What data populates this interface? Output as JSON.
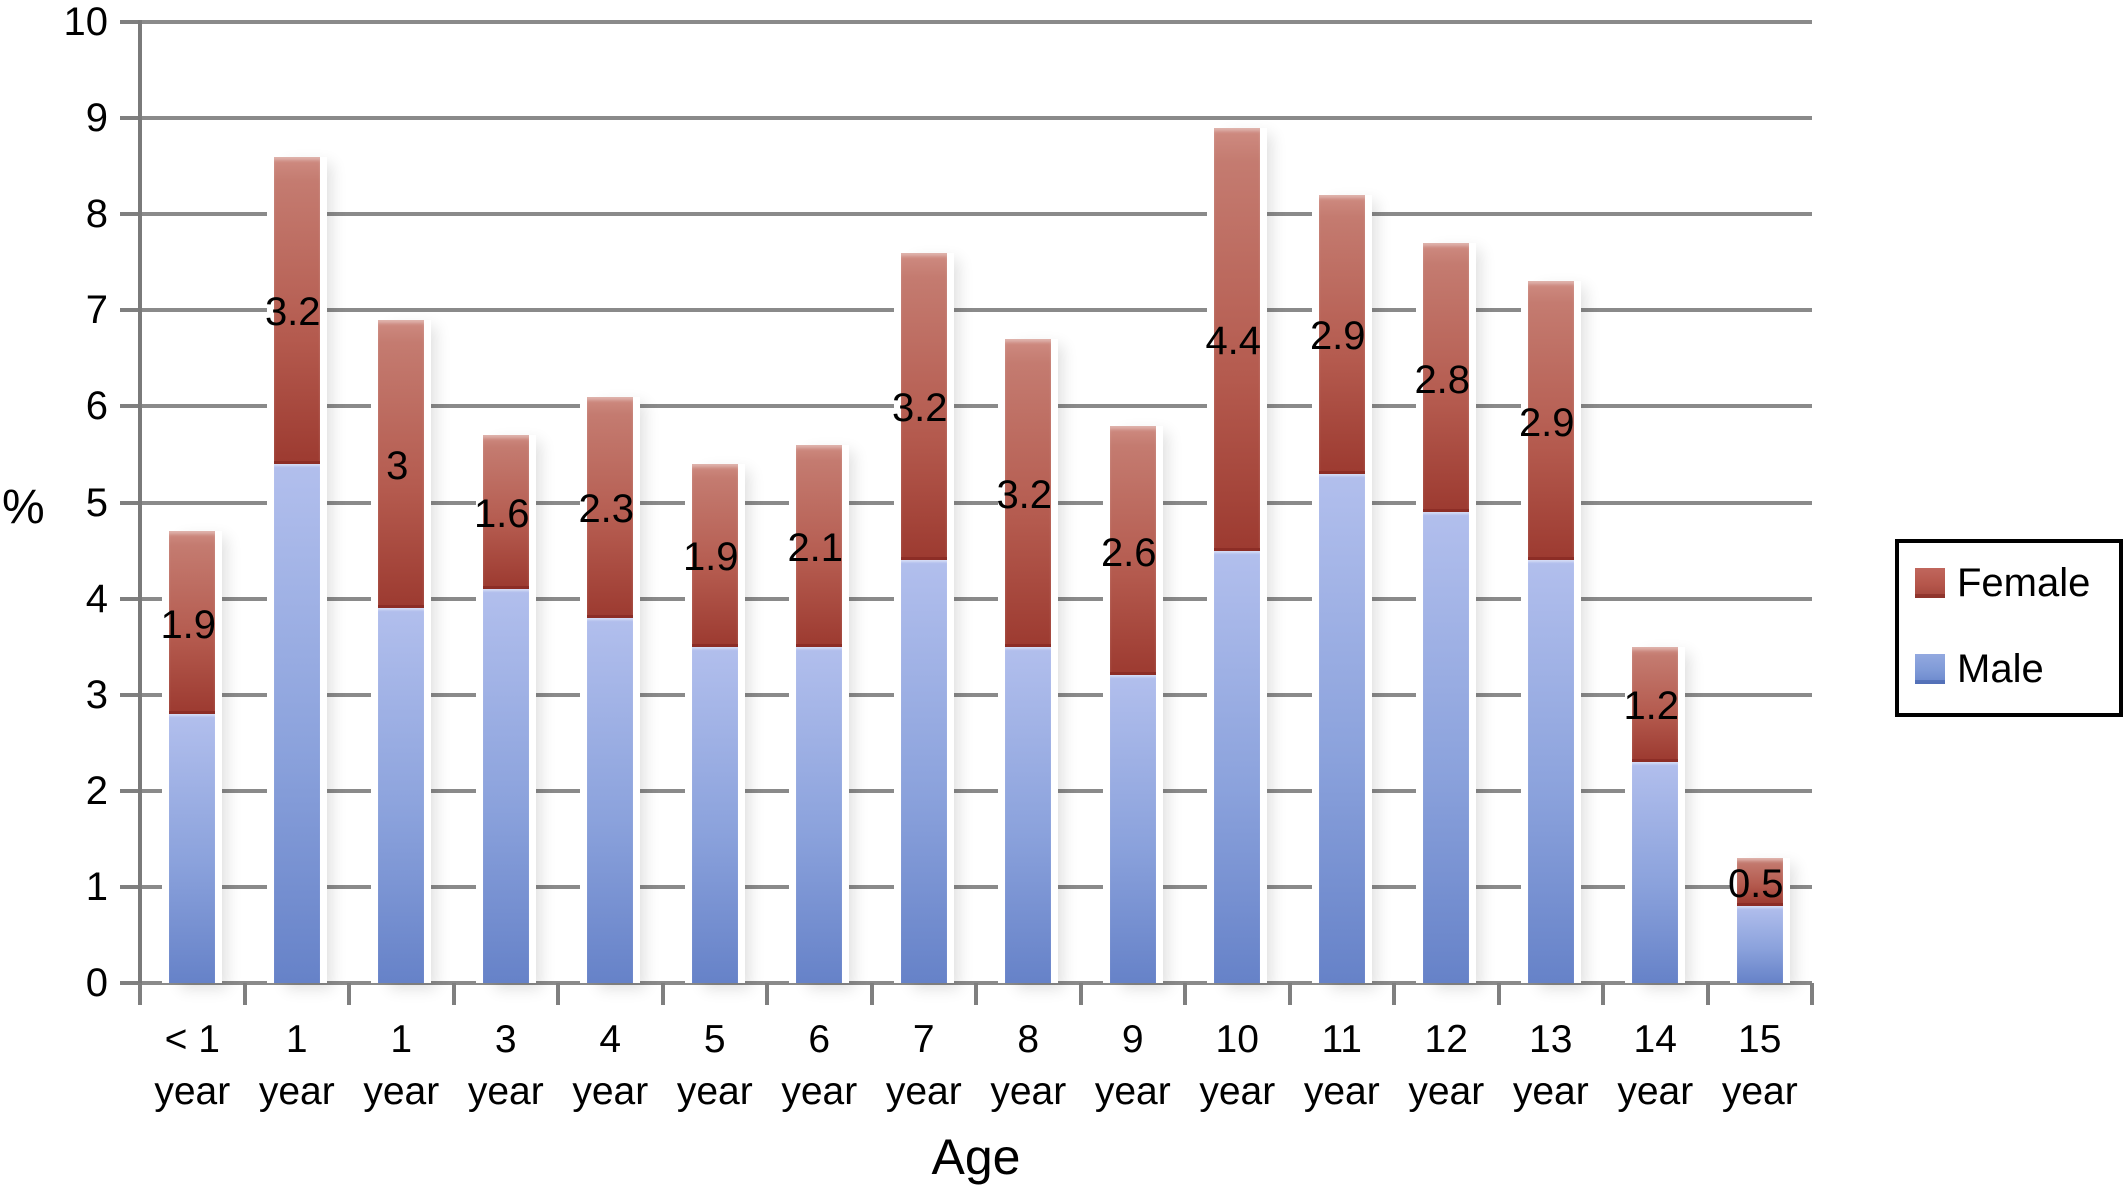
{
  "chart_data": {
    "type": "bar",
    "stacked": true,
    "title": "",
    "xlabel": "Age",
    "ylabel": "%",
    "ylim": [
      0,
      10
    ],
    "yticks": [
      0,
      1,
      2,
      3,
      4,
      5,
      6,
      7,
      8,
      9,
      10
    ],
    "grid": true,
    "legend_position": "right",
    "categories": [
      {
        "top": "< 1",
        "bottom": "year"
      },
      {
        "top": "1",
        "bottom": "year"
      },
      {
        "top": "1",
        "bottom": "year"
      },
      {
        "top": "3",
        "bottom": "year"
      },
      {
        "top": "4",
        "bottom": "year"
      },
      {
        "top": "5",
        "bottom": "year"
      },
      {
        "top": "6",
        "bottom": "year"
      },
      {
        "top": "7",
        "bottom": "year"
      },
      {
        "top": "8",
        "bottom": "year"
      },
      {
        "top": "9",
        "bottom": "year"
      },
      {
        "top": "10",
        "bottom": "year"
      },
      {
        "top": "11",
        "bottom": "year"
      },
      {
        "top": "12",
        "bottom": "year"
      },
      {
        "top": "13",
        "bottom": "year"
      },
      {
        "top": "14",
        "bottom": "year"
      },
      {
        "top": "15",
        "bottom": "year"
      }
    ],
    "series": [
      {
        "name": "Male",
        "values": [
          2.8,
          5.4,
          3.9,
          4.1,
          3.8,
          3.5,
          3.5,
          4.4,
          3.5,
          3.2,
          4.5,
          5.3,
          4.9,
          4.4,
          2.3,
          0.8
        ]
      },
      {
        "name": "Female",
        "values": [
          1.9,
          3.2,
          3.0,
          1.6,
          2.3,
          1.9,
          2.1,
          3.2,
          3.2,
          2.6,
          4.4,
          2.9,
          2.8,
          2.9,
          1.2,
          0.5
        ]
      }
    ],
    "totals": [
      4.7,
      8.6,
      6.9,
      5.7,
      6.1,
      5.4,
      5.6,
      7.6,
      6.7,
      5.8,
      8.9,
      8.2,
      7.7,
      7.3,
      3.5,
      1.3
    ],
    "data_labels": [
      "1.9",
      "3.2",
      "3",
      "1.6",
      "2.3",
      "1.9",
      "2.1",
      "3.2",
      "3.2",
      "2.6",
      "4.4",
      "2.9",
      "2.8",
      "2.9",
      "1.2",
      "0.5"
    ],
    "legend": [
      {
        "label": "Female"
      },
      {
        "label": "Male"
      }
    ],
    "colors": {
      "male_top": "#b2bfed",
      "male_bottom": "#6682c8",
      "female_top": "#ca8076",
      "female_bottom": "#9d3b31",
      "female_edge": "#8c2d26",
      "gridline": "#8a8a8a",
      "legend_female": "#b5564b",
      "legend_male": "#7f9ad7",
      "text": "#000000"
    }
  }
}
